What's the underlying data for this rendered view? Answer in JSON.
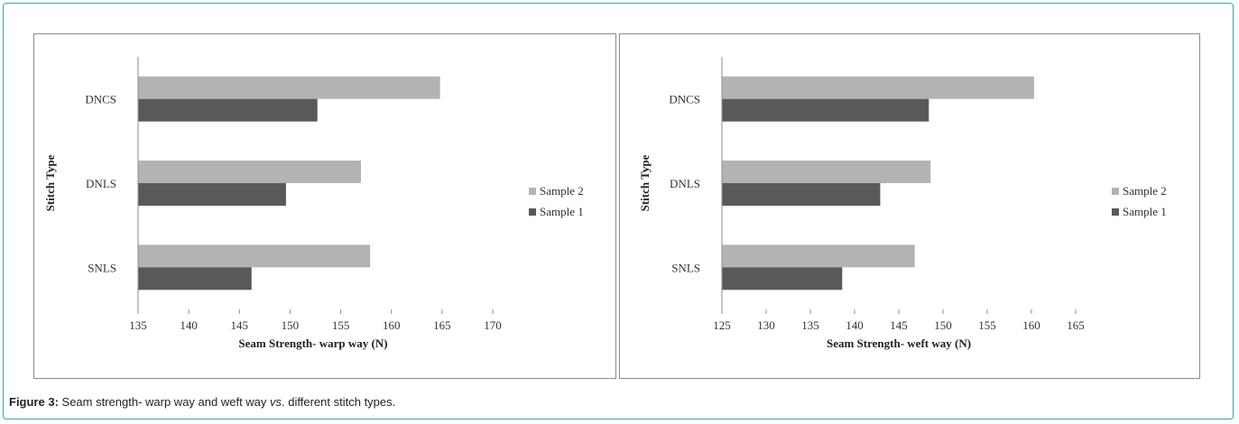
{
  "caption": {
    "label": "Figure 3:",
    "text_before": "Seam strength- warp way and weft way",
    "italic": "vs",
    "text_after": ". different stitch types."
  },
  "colors": {
    "sample_2": "#b3b3b3",
    "sample_1": "#595959",
    "frame_border": "#3aa6a6"
  },
  "chart_data": [
    {
      "type": "bar",
      "orientation": "horizontal",
      "categories": [
        "DNCS",
        "DNLS",
        "SNLS"
      ],
      "series": [
        {
          "name": "Sample 2",
          "values": [
            164.8,
            157.0,
            157.9
          ]
        },
        {
          "name": "Sample 1",
          "values": [
            152.7,
            149.6,
            146.2
          ]
        }
      ],
      "xlabel": "Seam Strength- warp way (N)",
      "ylabel": "Stitch Type",
      "xlim": [
        135,
        170
      ],
      "xticks": [
        135,
        140,
        145,
        150,
        155,
        160,
        165,
        170
      ],
      "legend": "right",
      "grid": false
    },
    {
      "type": "bar",
      "orientation": "horizontal",
      "categories": [
        "DNCS",
        "DNLS",
        "SNLS"
      ],
      "series": [
        {
          "name": "Sample 2",
          "values": [
            160.3,
            148.6,
            146.8
          ]
        },
        {
          "name": "Sample 1",
          "values": [
            148.4,
            142.9,
            138.6
          ]
        }
      ],
      "xlabel": "Seam Strength- weft way (N)",
      "ylabel": "Stitch Type",
      "xlim": [
        125,
        165
      ],
      "xticks": [
        125,
        130,
        135,
        140,
        145,
        150,
        155,
        160,
        165
      ],
      "legend": "right",
      "grid": false
    }
  ]
}
